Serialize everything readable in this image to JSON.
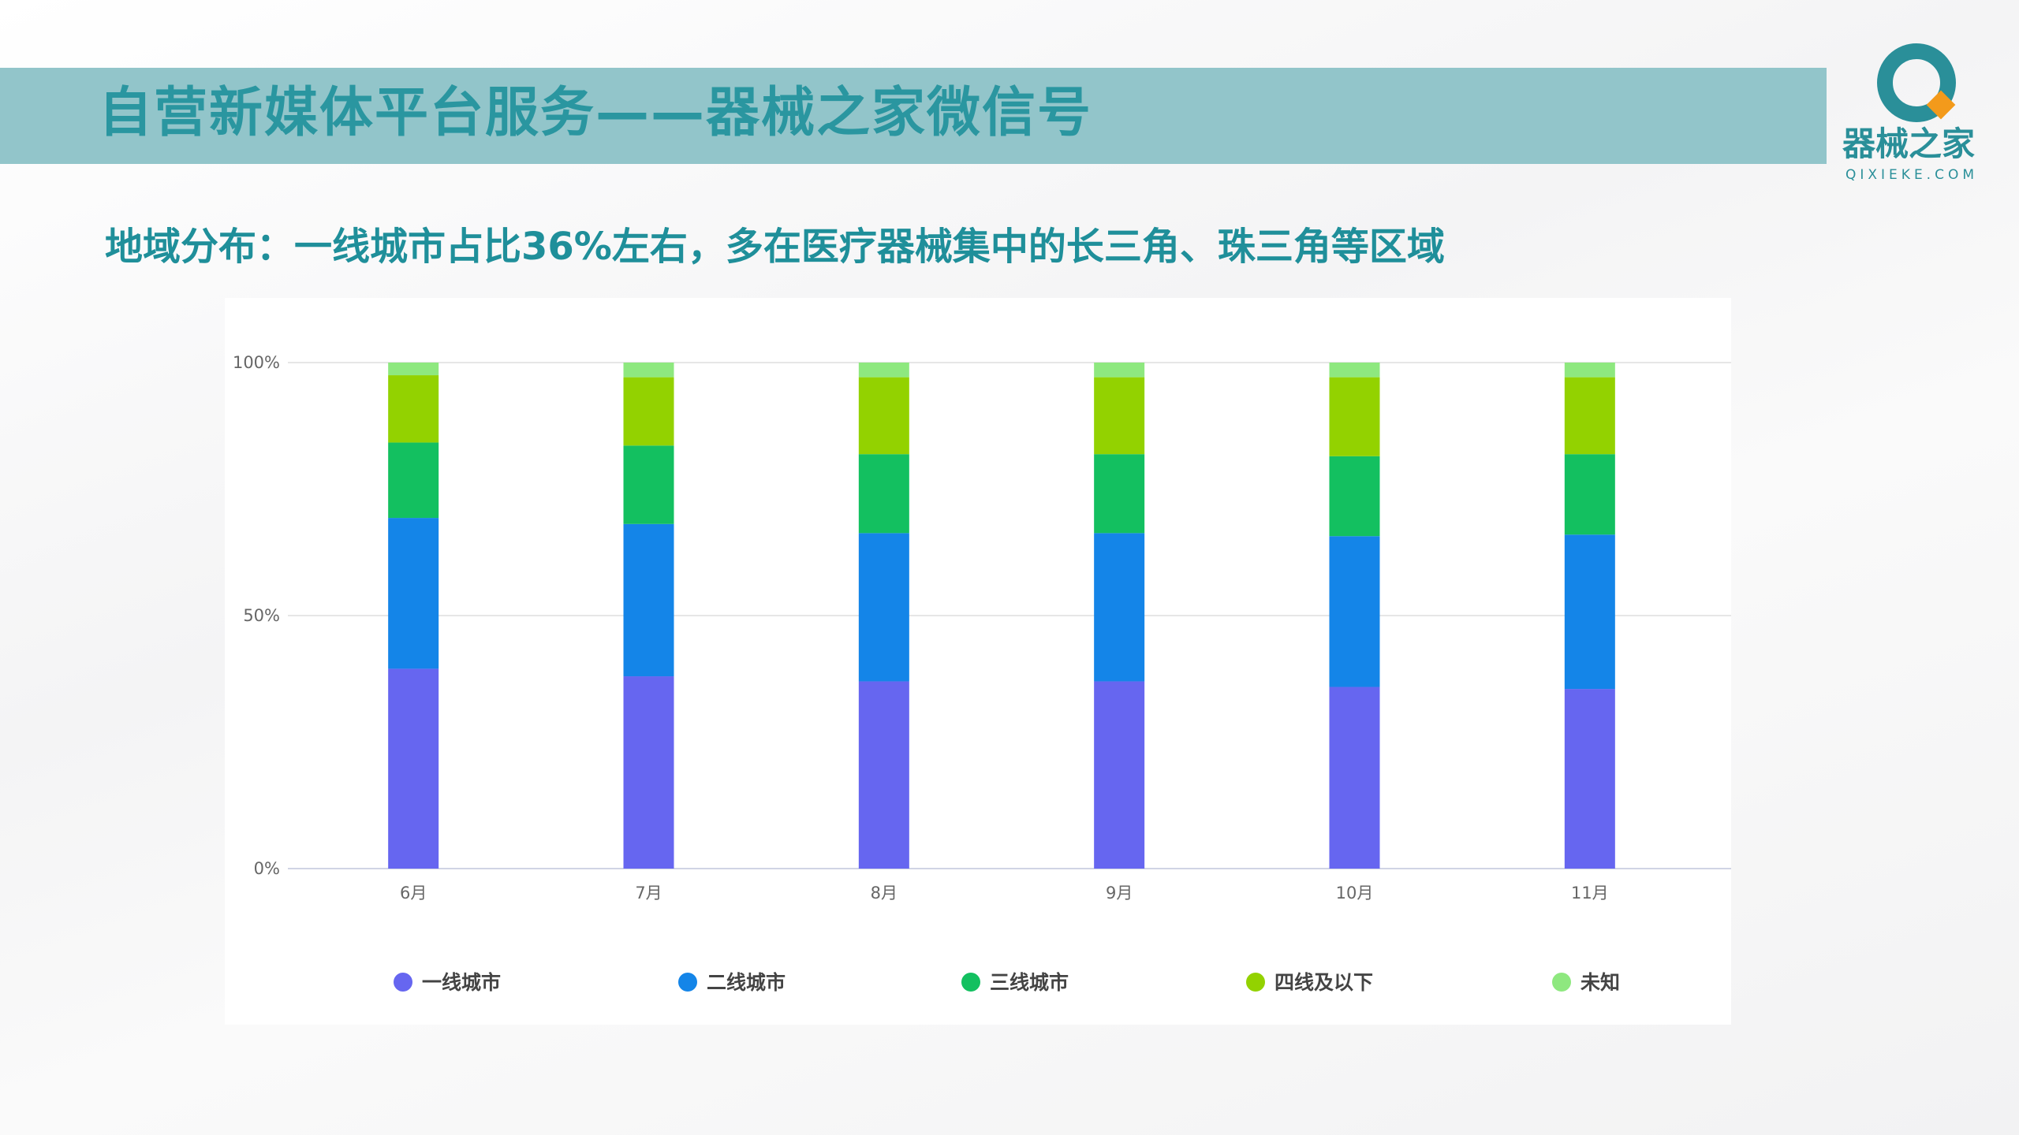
{
  "header": {
    "title": "自营新媒体平台服务——器械之家微信号"
  },
  "logo": {
    "text": "器械之家",
    "sub": "QIXIEKE.COM"
  },
  "subtitle": "地域分布：一线城市占比36%左右，多在医疗器械集中的长三角、珠三角等区域",
  "chart_data": {
    "type": "bar",
    "stacked": true,
    "normalized": true,
    "categories": [
      "6月",
      "7月",
      "8月",
      "9月",
      "10月",
      "11月"
    ],
    "ylim": [
      0,
      100
    ],
    "yticks": [
      "0%",
      "50%",
      "100%"
    ],
    "grid": true,
    "legend_position": "bottom",
    "series": [
      {
        "name": "一线城市",
        "color": "#6666f0",
        "values": [
          39.5,
          38.0,
          37.0,
          37.0,
          35.9,
          35.5
        ]
      },
      {
        "name": "二线城市",
        "color": "#1485e8",
        "values": [
          29.8,
          30.1,
          29.3,
          29.3,
          29.8,
          30.5
        ]
      },
      {
        "name": "三线城市",
        "color": "#13c060",
        "values": [
          14.9,
          15.5,
          15.6,
          15.6,
          15.8,
          15.9
        ]
      },
      {
        "name": "四线及以下",
        "color": "#93d200",
        "values": [
          13.3,
          13.5,
          15.2,
          15.2,
          15.6,
          15.2
        ]
      },
      {
        "name": "未知",
        "color": "#8ee87f",
        "values": [
          2.5,
          2.9,
          2.9,
          2.9,
          2.9,
          2.9
        ]
      }
    ]
  }
}
